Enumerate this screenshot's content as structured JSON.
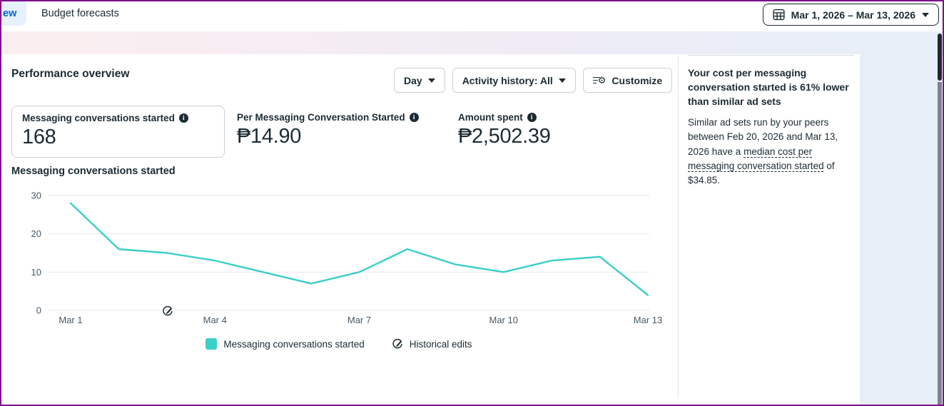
{
  "colors": {
    "accent_teal": "#3acfc7",
    "tab_blue": "#0064d1",
    "window_border": "#7d0f8c",
    "grid_line": "#e6e7ea",
    "axis_label": "#465a69"
  },
  "topbar": {
    "partial_tab_label": "ew",
    "budget_tab_label": "Budget forecasts",
    "date_range_label": "Mar 1, 2026 – Mar 13, 2026"
  },
  "panel": {
    "title": "Performance overview",
    "toolbar": {
      "day_label": "Day",
      "activity_label": "Activity history: All",
      "customize_label": "Customize"
    }
  },
  "metrics": [
    {
      "label": "Messaging conversations started",
      "value": "168"
    },
    {
      "label": "Per Messaging Conversation Started",
      "value": "₱14.90"
    },
    {
      "label": "Amount spent",
      "value": "₱2,502.39"
    }
  ],
  "chart_data": {
    "type": "line",
    "title": "Messaging conversations started",
    "x": [
      "Mar 1",
      "Mar 2",
      "Mar 3",
      "Mar 4",
      "Mar 5",
      "Mar 6",
      "Mar 7",
      "Mar 8",
      "Mar 9",
      "Mar 10",
      "Mar 11",
      "Mar 12",
      "Mar 13"
    ],
    "values": [
      28,
      16,
      15,
      13,
      10,
      7,
      10,
      16,
      12,
      10,
      13,
      14,
      4
    ],
    "x_tick_labels": [
      "Mar 1",
      "Mar 4",
      "Mar 7",
      "Mar 10",
      "Mar 13"
    ],
    "y_ticks": [
      0,
      10,
      20,
      30
    ],
    "ylim": [
      0,
      30
    ],
    "grid": true,
    "line_color": "#3acfc7",
    "legend_position": "bottom",
    "historical_edit_marker_x": "Mar 3",
    "legend": [
      {
        "type": "swatch",
        "label": "Messaging conversations started"
      },
      {
        "type": "icon",
        "icon": "historical-edit-icon",
        "label": "Historical edits"
      }
    ]
  },
  "sidebar": {
    "heading": "Your cost per messaging conversation started is 61% lower than similar ad sets",
    "body_pre": "Similar ad sets run by your peers between Feb 20, 2026 and Mar 13, 2026 have a ",
    "body_link": "median cost per messaging conversation started",
    "body_post": " of $34.85."
  },
  "icons": {
    "date_button": "calendar-grid-icon",
    "dropdown": "caret-down-icon",
    "customize": "settings-gear-icon",
    "metric_info": "info-icon",
    "historical": "historical-edit-icon",
    "legend_swatch": "series-swatch"
  }
}
